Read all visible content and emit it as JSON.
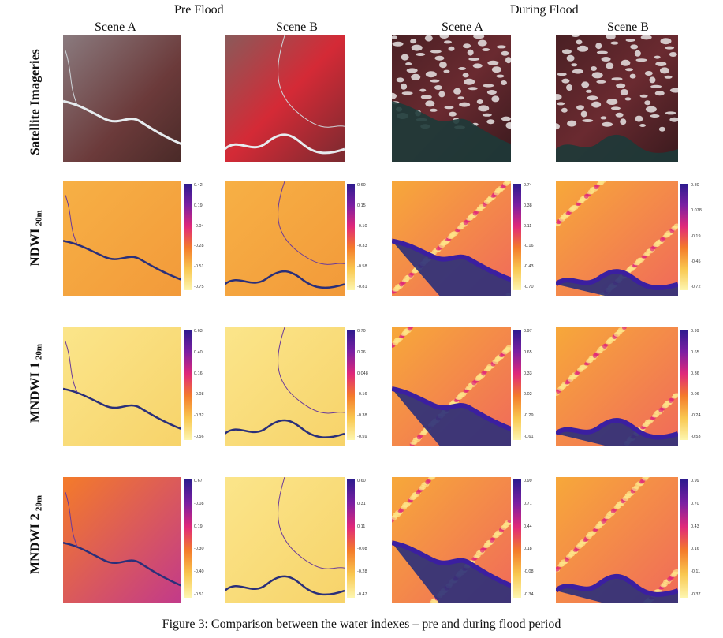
{
  "headers": {
    "pre_flood": "Pre Flood",
    "during_flood": "During Flood",
    "scenes": [
      "Scene A",
      "Scene B",
      "Scene A",
      "Scene B"
    ]
  },
  "rows": [
    {
      "label": "Satellite Imageries",
      "sub": ""
    },
    {
      "label": "NDWI",
      "sub": "20m"
    },
    {
      "label": "MNDWI 1",
      "sub": "20m"
    },
    {
      "label": "MNDWI 2",
      "sub": "20m"
    }
  ],
  "colorbar_ticks": [
    [
      [
        "0.42",
        "0.19",
        "-0.04",
        "-0.28",
        "-0.51",
        "-0.75"
      ],
      [
        "0.60",
        "0.15",
        "-0.10",
        "-0.33",
        "-0.58",
        "-0.81"
      ],
      [
        "0.74",
        "0.38",
        "0.11",
        "-0.16",
        "-0.43",
        "-0.70"
      ],
      [
        "0.80",
        "0.078",
        "-0.19",
        "-0.45",
        "-0.72"
      ]
    ],
    [
      [
        "0.63",
        "0.40",
        "0.16",
        "-0.08",
        "-0.32",
        "-0.56"
      ],
      [
        "0.70",
        "0.26",
        "0.048",
        "-0.16",
        "-0.38",
        "-0.59"
      ],
      [
        "0.97",
        "0.65",
        "0.33",
        "0.02",
        "-0.29",
        "-0.61"
      ],
      [
        "0.99",
        "0.65",
        "0.36",
        "0.06",
        "-0.24",
        "-0.53"
      ]
    ],
    [
      [
        "0.67",
        "-0.08",
        "0.19",
        "-0.30",
        "-0.40",
        "-0.51"
      ],
      [
        "0.60",
        "0.31",
        "0.11",
        "-0.08",
        "-0.28",
        "-0.47"
      ],
      [
        "0.99",
        "0.71",
        "0.44",
        "0.18",
        "-0.08",
        "-0.34"
      ],
      [
        "0.99",
        "0.70",
        "0.43",
        "0.16",
        "-0.11",
        "-0.37"
      ]
    ]
  ],
  "colormap": {
    "satellite_base": "#6b3a3a",
    "satellite_red": "#d42a36",
    "river_blue": "#2a2f7a",
    "plasma": [
      "#2d1b8e",
      "#7b1fa2",
      "#e0287a",
      "#f47b2a",
      "#f9c74f",
      "#fdf6b0"
    ]
  },
  "caption": "Figure 3: Comparison between the water indexes – pre and during flood period"
}
